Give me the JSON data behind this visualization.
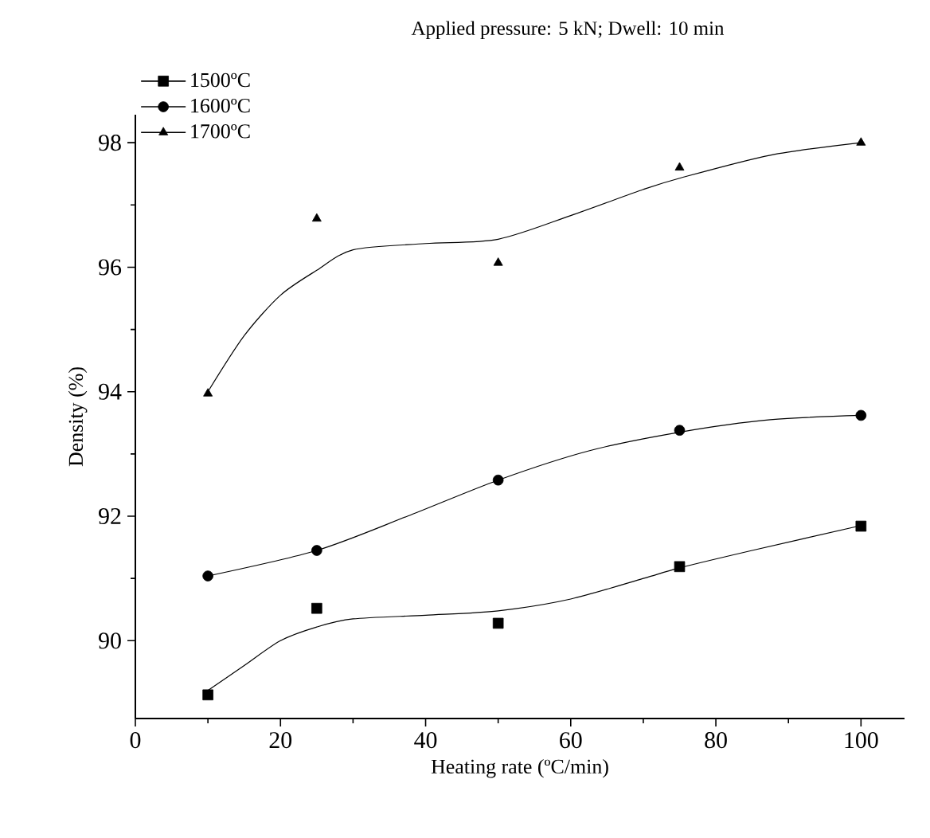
{
  "chart_data": {
    "type": "scatter",
    "title": "Applied pressure: 5 kN; Dwell: 10 min",
    "xlabel": "Heating rate (ºC/min)",
    "ylabel": "Density (%)",
    "xlim": [
      0,
      106
    ],
    "ylim": [
      88.75,
      98.45
    ],
    "xticks": [
      0,
      20,
      40,
      60,
      80,
      100
    ],
    "yticks": [
      90,
      92,
      94,
      96,
      98
    ],
    "grid": false,
    "legend": "top left",
    "series": [
      {
        "name": "1500ºC",
        "color": "#000000",
        "marker": "square",
        "x": [
          10,
          25,
          50,
          75,
          100
        ],
        "values": [
          89.13,
          90.52,
          90.28,
          91.19,
          91.84
        ]
      },
      {
        "name": "1600ºC",
        "color": "#000000",
        "marker": "circle",
        "x": [
          10,
          25,
          50,
          75,
          100
        ],
        "values": [
          91.04,
          91.45,
          92.58,
          93.38,
          93.62
        ]
      },
      {
        "name": "1700ºC",
        "color": "#000000",
        "marker": "triangle",
        "x": [
          10,
          25,
          50,
          75,
          100
        ],
        "values": [
          93.97,
          96.78,
          96.07,
          97.6,
          98.0
        ]
      },
      {
        "type": "line",
        "color": "#000000",
        "marker": "none",
        "line_style": "solid",
        "x": [
          10,
          15,
          20,
          25,
          30,
          40,
          50,
          60,
          70,
          75,
          85,
          100
        ],
        "values": [
          89.2,
          89.6,
          90.0,
          90.22,
          90.35,
          90.41,
          90.48,
          90.67,
          91.0,
          91.17,
          91.45,
          91.85
        ]
      },
      {
        "type": "line",
        "color": "#000000",
        "marker": "none",
        "line_style": "solid",
        "x": [
          10,
          25,
          37.5,
          50,
          62.5,
          75,
          87.5,
          100
        ],
        "values": [
          91.04,
          91.45,
          92.0,
          92.58,
          93.05,
          93.35,
          93.55,
          93.62
        ]
      },
      {
        "type": "line",
        "color": "#000000",
        "marker": "none",
        "line_style": "solid",
        "x": [
          10,
          15,
          20,
          25,
          30,
          40,
          50,
          60,
          70,
          75,
          87.5,
          100
        ],
        "values": [
          94.0,
          94.9,
          95.55,
          95.95,
          96.28,
          96.38,
          96.45,
          96.83,
          97.25,
          97.43,
          97.8,
          98.0
        ]
      }
    ]
  }
}
